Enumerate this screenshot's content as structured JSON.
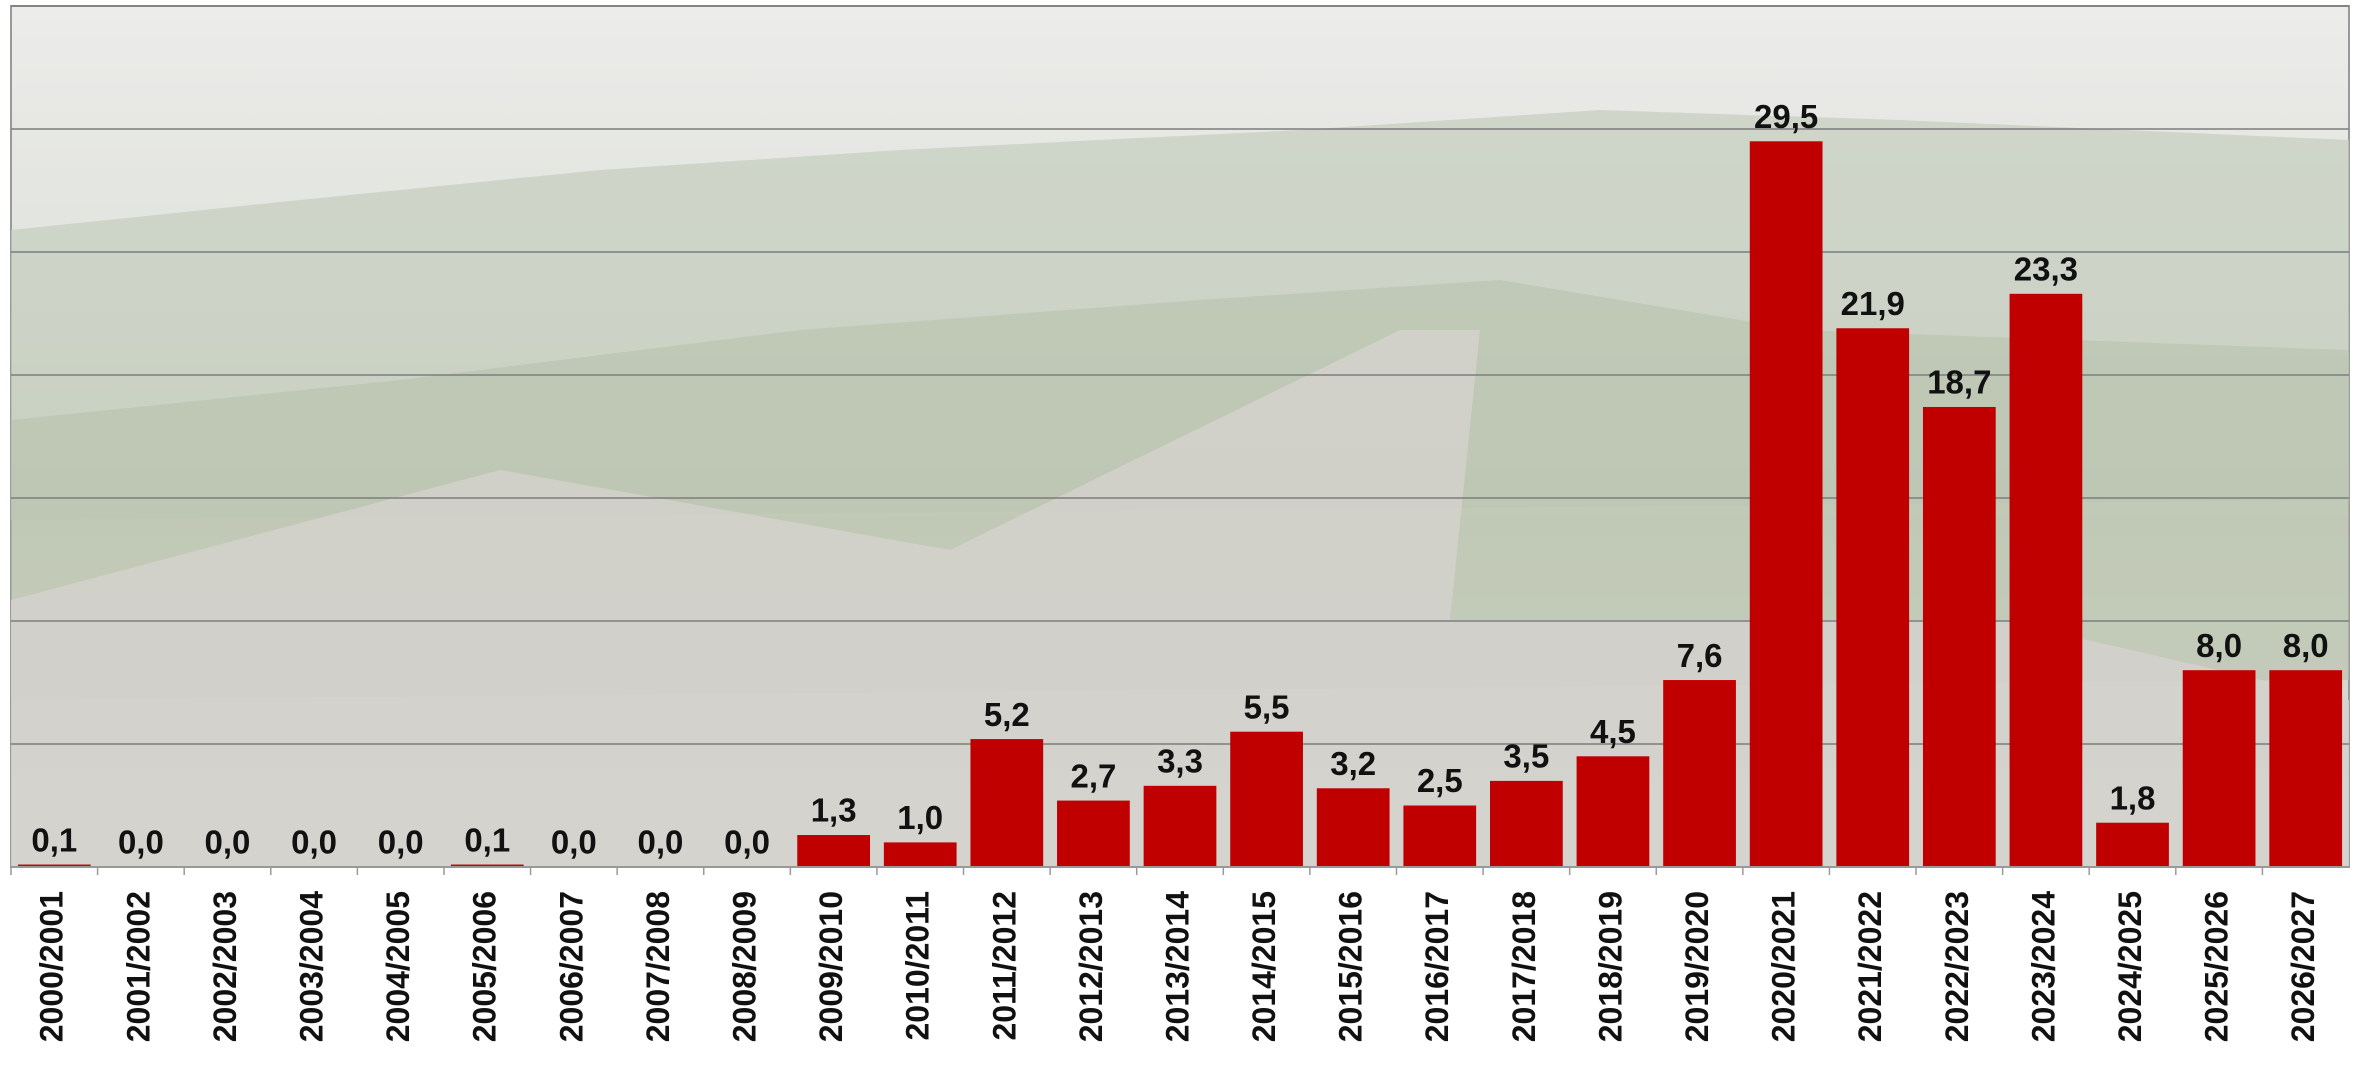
{
  "chart_data": {
    "type": "bar",
    "categories": [
      "2000/2001",
      "2001/2002",
      "2002/2003",
      "2003/2004",
      "2004/2005",
      "2005/2006",
      "2006/2007",
      "2007/2008",
      "2008/2009",
      "2009/2010",
      "2010/2011",
      "2011/2012",
      "2012/2013",
      "2013/2014",
      "2014/2015",
      "2015/2016",
      "2016/2017",
      "2017/2018",
      "2018/2019",
      "2019/2020",
      "2020/2021",
      "2021/2022",
      "2022/2023",
      "2023/2024",
      "2024/2025",
      "2025/2026",
      "2026/2027"
    ],
    "values": [
      0.1,
      0,
      0,
      0,
      0,
      0.1,
      0,
      0,
      0,
      1.3,
      1.0,
      5.2,
      2.7,
      3.3,
      5.5,
      3.2,
      2.5,
      3.5,
      4.5,
      7.6,
      29.5,
      21.9,
      18.7,
      23.3,
      1.8,
      8.0,
      8.0
    ],
    "value_labels": [
      "0,1",
      "0,0",
      "0,0",
      "0,0",
      "0,0",
      "0,1",
      "0,0",
      "0,0",
      "0,0",
      "1,3",
      "1,0",
      "5,2",
      "2,7",
      "3,3",
      "5,5",
      "3,2",
      "2,5",
      "3,5",
      "4,5",
      "7,6",
      "29,5",
      "21,9",
      "18,7",
      "23,3",
      "1,8",
      "8,0",
      "8,0"
    ],
    "color": "#c00000",
    "ylim": [
      0,
      35
    ],
    "yticks": [
      0,
      5,
      10,
      15,
      20,
      25,
      30,
      35
    ],
    "grid": true
  }
}
